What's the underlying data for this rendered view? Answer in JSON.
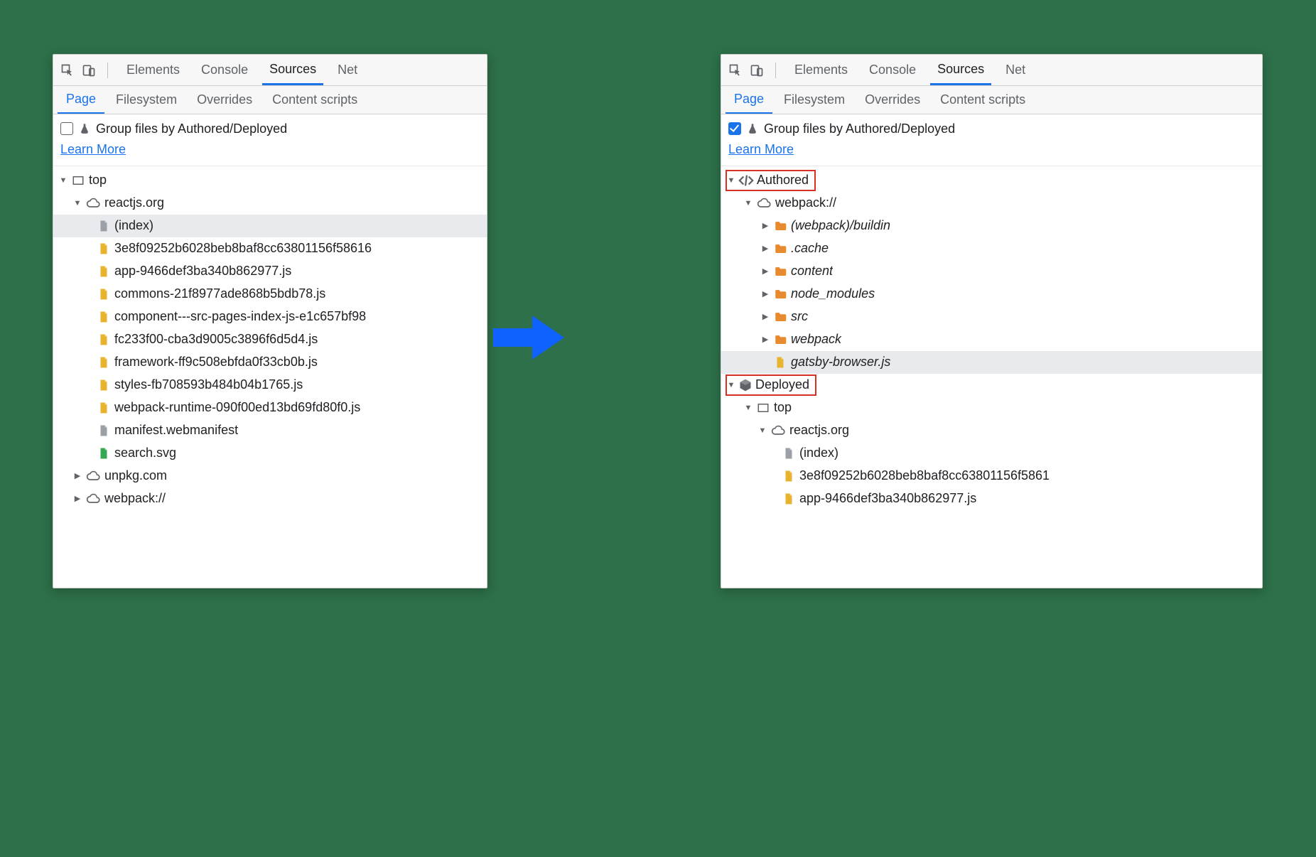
{
  "colors": {
    "bg": "#2d7049",
    "accent": "#1a73e8",
    "link": "#1a73e8",
    "highlight_border": "#d93025",
    "arrow": "#1062ff",
    "icon_gray": "#5f6368",
    "folder_orange": "#e88b2e",
    "file_yellow": "#e8b32e",
    "file_gray": "#9aa0a6",
    "file_green": "#34a853",
    "selection_bg": "#e8eaed"
  },
  "toolbar": {
    "tabs": [
      "Elements",
      "Console",
      "Sources",
      "Net"
    ],
    "active": "Sources"
  },
  "subtabs": {
    "tabs": [
      "Page",
      "Filesystem",
      "Overrides",
      "Content scripts"
    ],
    "active": "Page"
  },
  "groupby": {
    "label": "Group files by Authored/Deployed",
    "learn": "Learn More"
  },
  "left": {
    "checked": false,
    "tree": {
      "top": "top",
      "domain1": "reactjs.org",
      "files": [
        {
          "name": "(index)",
          "type": "file-gray",
          "sel": true
        },
        {
          "name": "3e8f09252b6028beb8baf8cc63801156f58616",
          "type": "file-yellow"
        },
        {
          "name": "app-9466def3ba340b862977.js",
          "type": "file-yellow"
        },
        {
          "name": "commons-21f8977ade868b5bdb78.js",
          "type": "file-yellow"
        },
        {
          "name": "component---src-pages-index-js-e1c657bf98",
          "type": "file-yellow"
        },
        {
          "name": "fc233f00-cba3d9005c3896f6d5d4.js",
          "type": "file-yellow"
        },
        {
          "name": "framework-ff9c508ebfda0f33cb0b.js",
          "type": "file-yellow"
        },
        {
          "name": "styles-fb708593b484b04b1765.js",
          "type": "file-yellow"
        },
        {
          "name": "webpack-runtime-090f00ed13bd69fd80f0.js",
          "type": "file-yellow"
        },
        {
          "name": "manifest.webmanifest",
          "type": "file-gray"
        },
        {
          "name": "search.svg",
          "type": "file-green"
        }
      ],
      "domain2": "unpkg.com",
      "domain3": "webpack://"
    }
  },
  "right": {
    "checked": true,
    "authored": {
      "label": "Authored",
      "origin": "webpack://",
      "folders": [
        "(webpack)/buildin",
        ".cache",
        "content",
        "node_modules",
        "src",
        "webpack"
      ],
      "file": "gatsby-browser.js"
    },
    "deployed": {
      "label": "Deployed",
      "top": "top",
      "domain": "reactjs.org",
      "files": [
        {
          "name": "(index)",
          "type": "file-gray"
        },
        {
          "name": "3e8f09252b6028beb8baf8cc63801156f5861",
          "type": "file-yellow"
        },
        {
          "name": "app-9466def3ba340b862977.js",
          "type": "file-yellow"
        }
      ]
    }
  }
}
